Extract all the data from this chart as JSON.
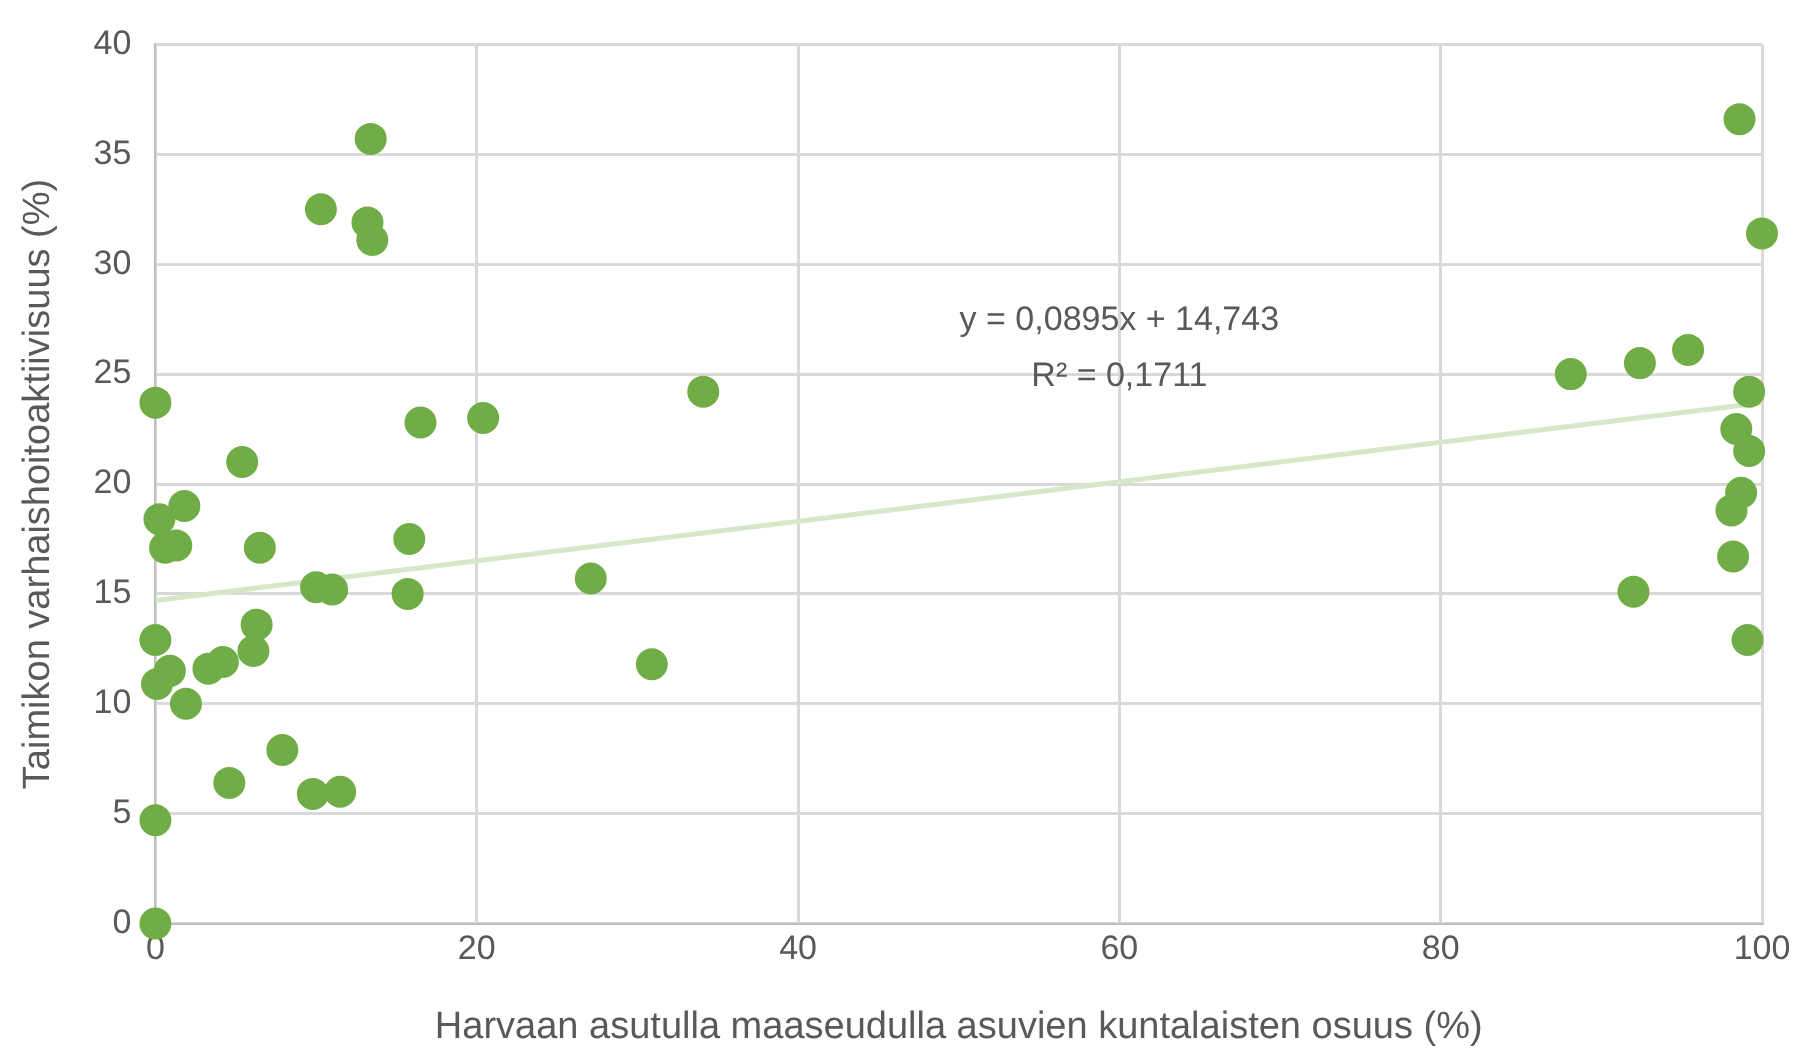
{
  "chart_data": {
    "type": "scatter",
    "xlabel": "Harvaan asutulla maaseudulla asuvien kuntalaisten osuus (%)",
    "ylabel": "Taimikon varhaishoitoaktiivisuus (%)",
    "xlim": [
      0,
      100
    ],
    "xticks": [
      0,
      20,
      40,
      60,
      80,
      100
    ],
    "ylim": [
      0,
      40
    ],
    "yticks": [
      0,
      5,
      10,
      15,
      20,
      25,
      30,
      35,
      40
    ],
    "grid": true,
    "legend": false,
    "annotations": [
      "y = 0,0895x + 14,743",
      "R² = 0,1711"
    ],
    "series": [
      {
        "color": "#70ad47",
        "marker": "circle",
        "x": [
          0,
          0.25,
          0.6,
          1.3,
          1.8,
          0,
          0.1,
          0.9,
          1.9,
          3.3,
          4.2,
          4.6,
          0,
          0,
          5.4,
          6.5,
          6.1,
          6.3,
          7.9,
          9.8,
          11.5,
          10.0,
          11.0,
          10.3,
          13.2,
          13.5,
          13.4,
          15.7,
          15.8,
          16.5,
          20.4,
          27.1,
          30.9,
          34.1,
          88.1,
          92.4,
          95.4,
          92.0,
          98.6,
          100,
          99.2,
          98.4,
          99.2,
          98.7,
          98.1,
          98.2,
          99.1
        ],
        "values": [
          23.7,
          18.4,
          17.1,
          17.2,
          19.0,
          12.9,
          10.9,
          11.5,
          10.0,
          11.6,
          11.9,
          6.4,
          4.7,
          0,
          21.0,
          17.1,
          12.4,
          13.6,
          7.9,
          5.9,
          6.0,
          15.3,
          15.2,
          32.5,
          31.9,
          31.1,
          35.7,
          15.0,
          17.5,
          22.8,
          23.0,
          15.7,
          11.8,
          24.2,
          25.0,
          25.5,
          26.1,
          15.1,
          36.6,
          31.4,
          24.2,
          22.5,
          21.5,
          19.6,
          18.8,
          16.7,
          12.9
        ]
      },
      {
        "type": "line",
        "color": "#d5e8c8",
        "marker": "none",
        "x": [
          0,
          100
        ],
        "values": [
          14.7,
          23.7
        ]
      }
    ]
  }
}
